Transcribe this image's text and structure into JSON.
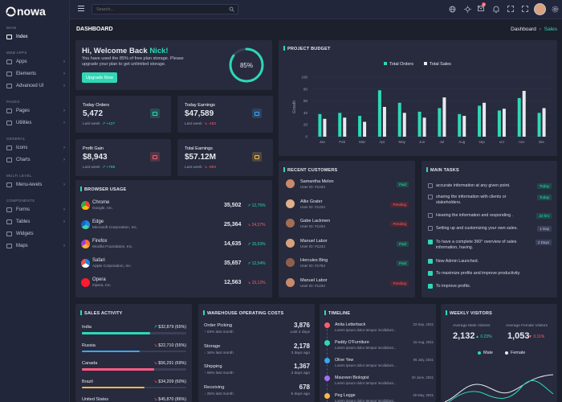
{
  "brand": {
    "name": "nowa"
  },
  "search": {
    "placeholder": "Search..."
  },
  "topbar": {
    "notification_count": "4"
  },
  "sidebar": {
    "sections": [
      {
        "label": "MAIN",
        "items": [
          {
            "label": "Index",
            "chev": false
          }
        ]
      },
      {
        "label": "WEB APPS",
        "items": [
          {
            "label": "Apps",
            "chev": true
          },
          {
            "label": "Elements",
            "chev": true
          },
          {
            "label": "Advanced UI",
            "chev": true
          }
        ]
      },
      {
        "label": "PAGES",
        "items": [
          {
            "label": "Pages",
            "chev": true
          },
          {
            "label": "Utilities",
            "chev": true
          }
        ]
      },
      {
        "label": "GENERAL",
        "items": [
          {
            "label": "Icons",
            "chev": true
          },
          {
            "label": "Charts",
            "chev": true
          }
        ]
      },
      {
        "label": "MULTI LEVEL",
        "items": [
          {
            "label": "Menu-levels",
            "chev": true
          }
        ]
      },
      {
        "label": "COMPONENTS",
        "items": [
          {
            "label": "Forms",
            "chev": true
          },
          {
            "label": "Tables",
            "chev": true
          },
          {
            "label": "Widgets",
            "chev": false
          },
          {
            "label": "Maps",
            "chev": true
          }
        ]
      }
    ]
  },
  "page": {
    "title": "DASHBOARD",
    "breadcrumb_home": "Dashboard",
    "breadcrumb_sep": "›",
    "breadcrumb_current": "Sales"
  },
  "welcome": {
    "greeting": "Hi, Welcome Back ",
    "name": "Nick!",
    "text": "You have used the 85% of free plan storage. Please upgrade your plan to get unlimited storage.",
    "button": "Upgrade Now",
    "percent_label": "85%",
    "percent": 0.85
  },
  "stats": [
    {
      "label": "Today Orders",
      "value": "5,472",
      "period": "Last week",
      "change": "+427",
      "trend": "up",
      "color": "#2ed8b6",
      "icon": "cart-icon"
    },
    {
      "label": "Today Earnings",
      "value": "$47,589",
      "period": "Last week",
      "change": "-453",
      "trend": "down",
      "color": "#3aa6f5",
      "icon": "dollar-icon"
    },
    {
      "label": "Profit Gain",
      "value": "$8,943",
      "period": "Last week",
      "change": "+788",
      "trend": "up",
      "color": "#ff5d6c",
      "icon": "share-icon"
    },
    {
      "label": "Total Earnings",
      "value": "$57.12M",
      "period": "Last week",
      "change": "-693",
      "trend": "down",
      "color": "#f7b84b",
      "icon": "wallet-icon"
    }
  ],
  "budget": {
    "title": "PROJECT BUDGET"
  },
  "chart_data": {
    "type": "bar",
    "categories": [
      "Jan",
      "Feb",
      "Mar",
      "Apr",
      "May",
      "Jun",
      "Jul",
      "Aug",
      "sep",
      "oct",
      "nov",
      "dec"
    ],
    "series": [
      {
        "name": "Total Orders",
        "color": "#2ed8b6",
        "values": [
          38,
          40,
          35,
          78,
          57,
          42,
          48,
          38,
          52,
          44,
          65,
          40
        ]
      },
      {
        "name": "Total Sales",
        "color": "#e8e9ee",
        "values": [
          30,
          32,
          25,
          50,
          40,
          32,
          66,
          35,
          57,
          47,
          77,
          48
        ]
      }
    ],
    "ylabel": "Growth",
    "ylim": [
      0,
      100
    ],
    "yticks": [
      0,
      20,
      40,
      60,
      80,
      100
    ],
    "legend": "top"
  },
  "browser": {
    "title": "BROWSER USAGE",
    "rows": [
      {
        "name": "Chrome",
        "company": "Google, Inc.",
        "value": "35,502",
        "change": "12,75%",
        "trend": "up",
        "icon": "chrome-icon"
      },
      {
        "name": "Edge",
        "company": "Microsoft Corporation, Inc.",
        "value": "25,364",
        "change": "24,37%",
        "trend": "down",
        "icon": "edge-icon"
      },
      {
        "name": "Firefox",
        "company": "Mozilla Foundation, Inc.",
        "value": "14,635",
        "change": "15,63%",
        "trend": "up",
        "icon": "firefox-icon"
      },
      {
        "name": "Safari",
        "company": "Apple Corporation, Inc.",
        "value": "35,657",
        "change": "12,54%",
        "trend": "up",
        "icon": "safari-icon"
      },
      {
        "name": "Opera",
        "company": "Opera, Inc.",
        "value": "12,563",
        "change": "15,12%",
        "trend": "down",
        "icon": "opera-icon"
      }
    ]
  },
  "customers": {
    "title": "RECENT CUSTOMERS",
    "rows": [
      {
        "name": "Samantha Melon",
        "id": "User ID: #1234",
        "status": "Paid",
        "kind": "paid"
      },
      {
        "name": "Allie Grater",
        "id": "User ID: #1234",
        "status": "Pending",
        "kind": "pending"
      },
      {
        "name": "Gabe Lackmen",
        "id": "User ID: #1234",
        "status": "Pending",
        "kind": "pending"
      },
      {
        "name": "Manuel Labor",
        "id": "User ID: #1234",
        "status": "Paid",
        "kind": "paid"
      },
      {
        "name": "Hercules Bing",
        "id": "User ID: #1754",
        "status": "Paid",
        "kind": "paid"
      },
      {
        "name": "Manuel Labor",
        "id": "User ID: #1234",
        "status": "Pending",
        "kind": "pending"
      }
    ]
  },
  "tasks": {
    "title": "MAIN TASKS",
    "rows": [
      {
        "text": "accurate information at any given point.",
        "tag": "Today",
        "checked": false
      },
      {
        "text": "sharing the information with clients or stakeholders.",
        "tag": "Today",
        "checked": false
      },
      {
        "text": "Hearing the information and responding .",
        "tag": "22 hrs",
        "checked": false
      },
      {
        "text": "Setting up and customizing your own sales.",
        "tag": "1 Day",
        "checked": false
      },
      {
        "text": "To have a complete 360° overview of sales information, having.",
        "tag": "2 Days",
        "checked": true
      },
      {
        "text": "New Admin Launched.",
        "tag": "",
        "checked": true
      },
      {
        "text": "To maximize profits and improve productivity.",
        "tag": "",
        "checked": true
      },
      {
        "text": "To improve profits.",
        "tag": "",
        "checked": true
      }
    ]
  },
  "sales": {
    "title": "SALES ACTIVITY",
    "rows": [
      {
        "country": "India",
        "value": "$32,879 (65%)",
        "pct": 0.65,
        "trend": "up",
        "color": "#2ed8b6"
      },
      {
        "country": "Russia",
        "value": "$22,710 (55%)",
        "pct": 0.55,
        "trend": "down",
        "color": "#3aa6f5"
      },
      {
        "country": "Canada",
        "value": "$56,291 (69%)",
        "pct": 0.69,
        "trend": "down",
        "color": "#ff5d86"
      },
      {
        "country": "Brazil",
        "value": "$34,209 (60%)",
        "pct": 0.6,
        "trend": "down",
        "color": "#f7b84b"
      },
      {
        "country": "United States",
        "value": "$45,870 (86%)",
        "pct": 0.86,
        "trend": "down",
        "color": "#2ed8b6"
      }
    ]
  },
  "warehouse": {
    "title": "WAREHOUSE OPERATING COSTS",
    "rows": [
      {
        "name": "Order Picking",
        "change": "03% last month",
        "trend": "up",
        "value": "3,876",
        "ago": "Last 4 days"
      },
      {
        "name": "Storage",
        "change": "16% last month",
        "trend": "down",
        "value": "2,178",
        "ago": "3 days ago"
      },
      {
        "name": "Shipping",
        "change": "06% last month",
        "trend": "up",
        "value": "1,367",
        "ago": "3 days ago"
      },
      {
        "name": "Receiving",
        "change": "25% last month",
        "trend": "down",
        "value": "678",
        "ago": "5 days ago"
      }
    ]
  },
  "timeline": {
    "title": "TIMELINE",
    "rows": [
      {
        "name": "Anita Letterback",
        "text": "Lorem ipsum dolor tempor incididunt...",
        "date": "23 Sep, 2021",
        "color": "#ff5d6c"
      },
      {
        "name": "Paddy O'Furniture",
        "text": "Lorem ipsum dolor tempor incididunt...",
        "date": "16 Aug, 2021",
        "color": "#2ed8b6"
      },
      {
        "name": "Olive Yew",
        "text": "Lorem ipsum dolor tempor incididunt...",
        "date": "05 July, 2021",
        "color": "#3aa6f5"
      },
      {
        "name": "Maureen Biologist",
        "text": "Lorem ipsum dolor tempor incididunt...",
        "date": "20 June, 2021",
        "color": "#a56ef6"
      },
      {
        "name": "Peg Legge",
        "text": "Lorem ipsum dolor tempor incididunt...",
        "date": "29 May, 2021",
        "color": "#f7b84b"
      }
    ]
  },
  "visitors": {
    "title": "WEEKLY VISITORS",
    "male_label": "Average Male Visitors",
    "female_label": "Average Female Visitors",
    "male_value": "2,132",
    "male_change": "0.23%",
    "female_value": "1,053",
    "female_change": "0.11%",
    "legend_male": "Male",
    "legend_female": "Female"
  }
}
